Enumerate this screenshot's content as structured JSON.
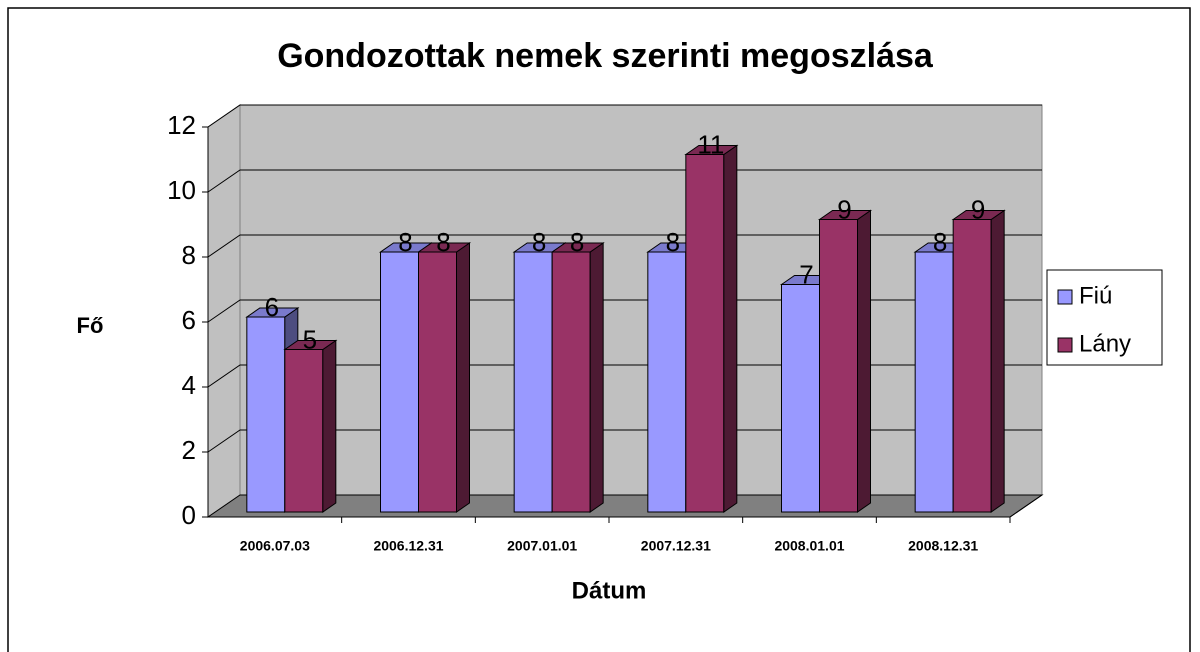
{
  "chart_data": {
    "type": "bar3d",
    "title": "Gondozottak nemek szerinti megoszlása",
    "x_label": "Dátum",
    "y_label": "Fő",
    "categories": [
      "2006.07.03",
      "2006.12.31",
      "2007.01.01",
      "2007.12.31",
      "2008.01.01",
      "2008.12.31"
    ],
    "series": [
      {
        "name": "Fiú",
        "color": "#9999ff",
        "values": [
          6,
          8,
          8,
          8,
          7,
          8
        ]
      },
      {
        "name": "Lány",
        "color": "#993366",
        "values": [
          5,
          8,
          8,
          11,
          9,
          9
        ]
      }
    ],
    "ylim": [
      0,
      12
    ],
    "yticks": [
      0,
      2,
      4,
      6,
      8,
      10,
      12
    ],
    "grid": true,
    "legend": "right"
  }
}
